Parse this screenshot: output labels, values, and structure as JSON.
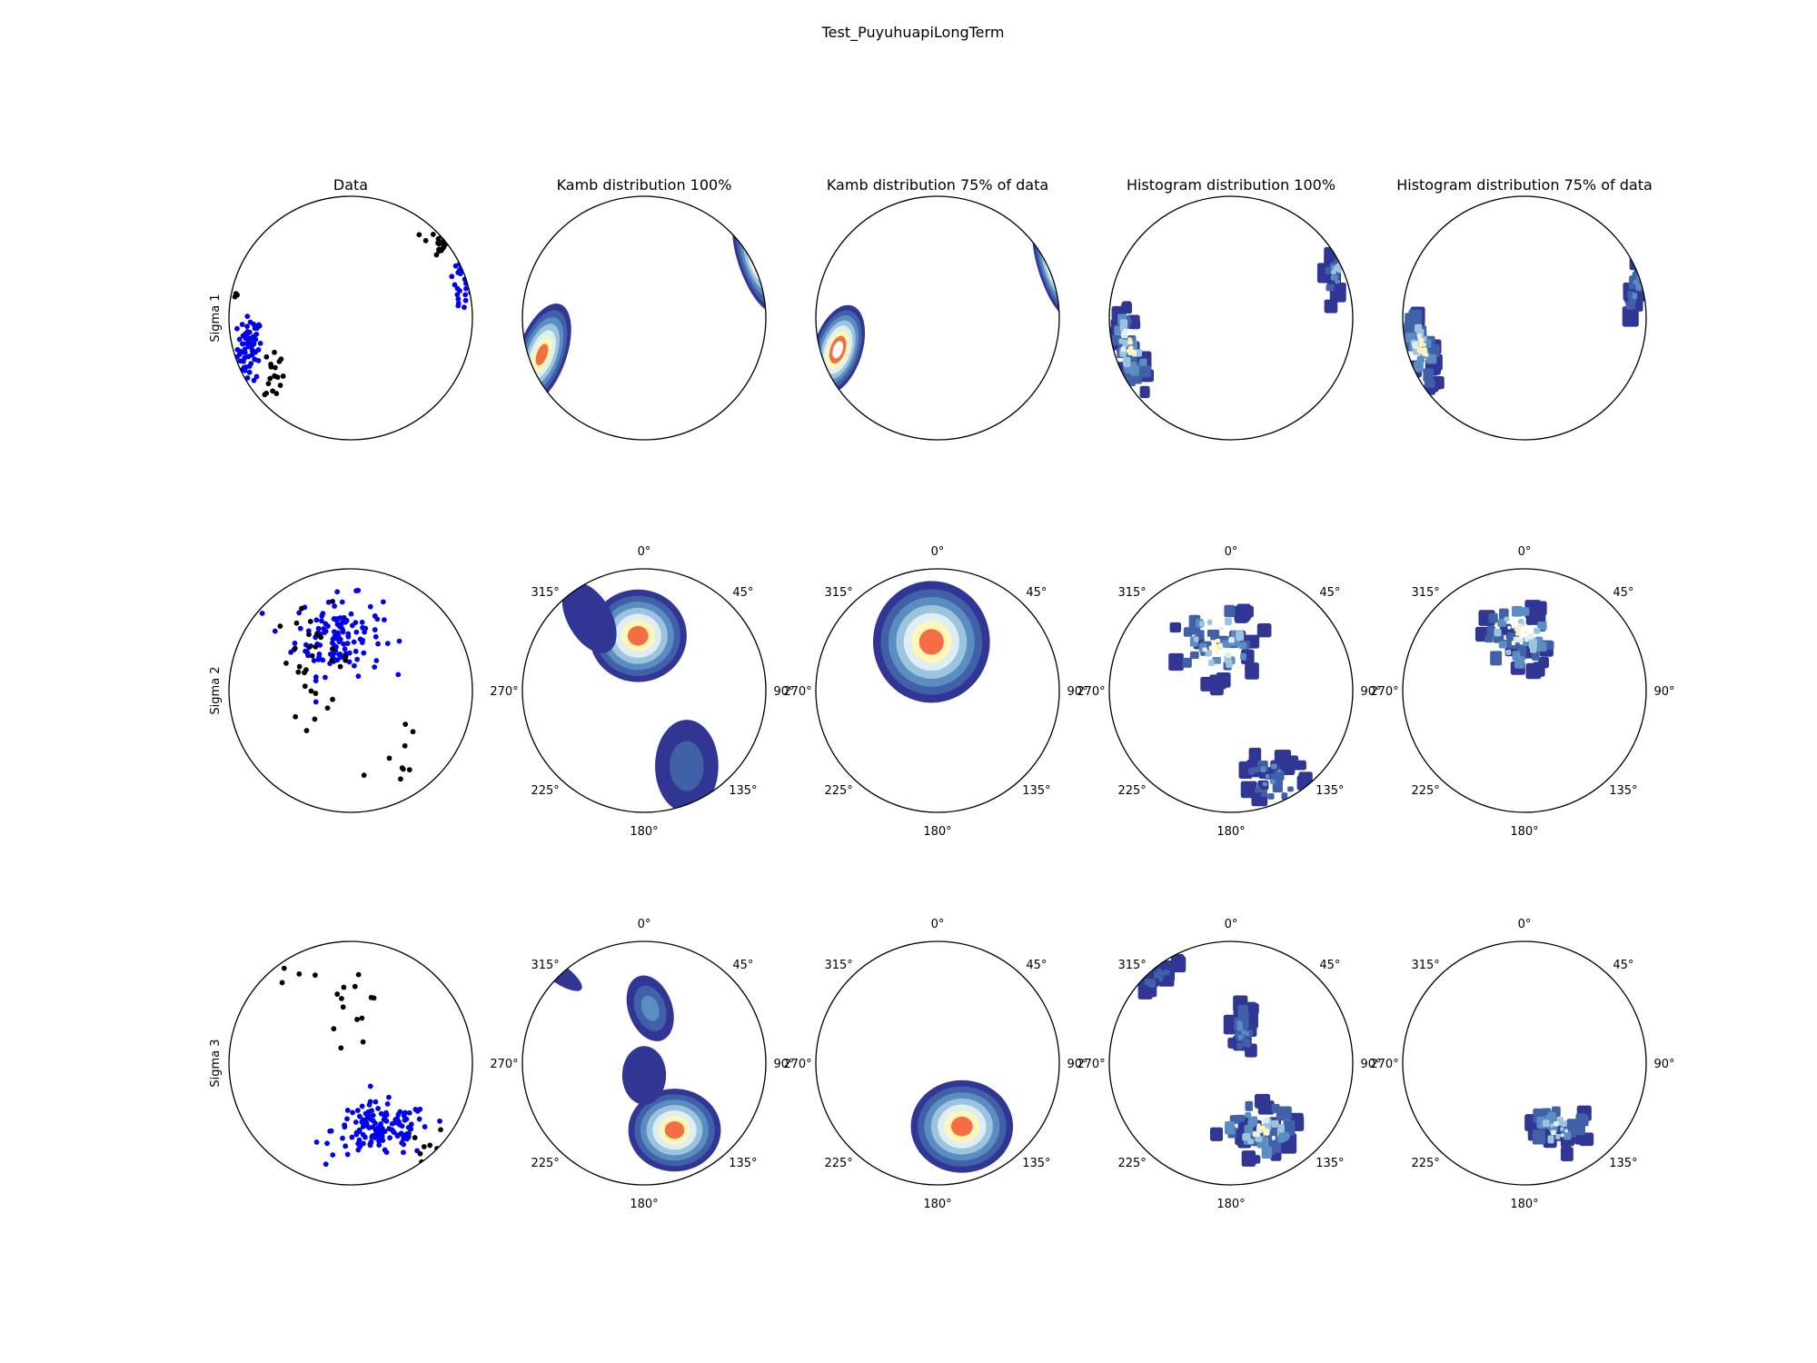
{
  "figure": {
    "title": "Test_PuyuhuapiLongTerm",
    "column_titles": [
      "Data",
      "Kamb distribution 100%",
      "Kamb distribution 75% of data",
      "Histogram distribution 100%",
      "Histogram distribution 75% of data"
    ],
    "row_labels": [
      "Sigma 1",
      "Sigma 2",
      "Sigma 3"
    ],
    "azimuth_tick_labels": [
      "0°",
      "45°",
      "90°",
      "135°",
      "180°",
      "225°",
      "270°",
      "315°"
    ]
  },
  "colors": {
    "data_points_primary": "#0000ee",
    "data_points_secondary": "#000000",
    "contour_levels": [
      "#313695",
      "#4061a8",
      "#5b8cc2",
      "#9cc4dc",
      "#dfeef2",
      "#fff6b8",
      "#f46d43",
      "#ffffff"
    ]
  },
  "chart_data": [
    {
      "type": "scatter",
      "projection": "lower-hemisphere stereonet",
      "row": "Sigma 1",
      "column": "Data",
      "note": "x/y = equal-area projection coordinates (unit circle)",
      "series": [
        {
          "color": "#0000ee",
          "clusters": [
            {
              "x": -0.83,
              "y": -0.25,
              "sx": 0.05,
              "sy": 0.13,
              "n": 70
            },
            {
              "x": 0.9,
              "y": 0.3,
              "sx": 0.04,
              "sy": 0.16,
              "n": 30
            }
          ]
        },
        {
          "color": "#000000",
          "clusters": [
            {
              "x": -0.63,
              "y": -0.45,
              "sx": 0.04,
              "sy": 0.12,
              "n": 18
            },
            {
              "x": 0.7,
              "y": 0.62,
              "sx": 0.06,
              "sy": 0.06,
              "n": 20
            },
            {
              "x": -0.94,
              "y": 0.18,
              "sx": 0.01,
              "sy": 0.02,
              "n": 3
            }
          ]
        }
      ]
    },
    {
      "type": "scatter",
      "projection": "lower-hemisphere stereonet",
      "row": "Sigma 2",
      "column": "Data",
      "series": [
        {
          "color": "#0000ee",
          "clusters": [
            {
              "x": -0.1,
              "y": 0.45,
              "sx": 0.18,
              "sy": 0.16,
              "n": 130
            }
          ]
        },
        {
          "color": "#000000",
          "clusters": [
            {
              "x": -0.3,
              "y": 0.25,
              "sx": 0.16,
              "sy": 0.22,
              "n": 30
            },
            {
              "x": 0.4,
              "y": -0.65,
              "sx": 0.18,
              "sy": 0.16,
              "n": 12
            }
          ]
        }
      ]
    },
    {
      "type": "scatter",
      "projection": "lower-hemisphere stereonet",
      "row": "Sigma 3",
      "column": "Data",
      "series": [
        {
          "color": "#0000ee",
          "clusters": [
            {
              "x": 0.25,
              "y": -0.55,
              "sx": 0.2,
              "sy": 0.11,
              "n": 140
            }
          ]
        },
        {
          "color": "#000000",
          "clusters": [
            {
              "x": 0.05,
              "y": 0.5,
              "sx": 0.12,
              "sy": 0.22,
              "n": 14
            },
            {
              "x": 0.65,
              "y": -0.7,
              "sx": 0.08,
              "sy": 0.08,
              "n": 10
            },
            {
              "x": -0.55,
              "y": 0.75,
              "sx": 0.1,
              "sy": 0.06,
              "n": 3
            }
          ]
        }
      ]
    },
    {
      "type": "heatmap",
      "method": "kamb",
      "row": "Sigma 1",
      "column": "Kamb distribution 100%",
      "blobs": [
        {
          "x": -0.84,
          "y": -0.3,
          "rx": 0.2,
          "ry": 0.44,
          "rot": -20,
          "levels": 7
        },
        {
          "x": 0.92,
          "y": 0.45,
          "rx": 0.14,
          "ry": 0.42,
          "rot": 20,
          "levels": 6
        }
      ]
    },
    {
      "type": "heatmap",
      "method": "kamb",
      "row": "Sigma 1",
      "column": "Kamb distribution 75% of data",
      "blobs": [
        {
          "x": -0.82,
          "y": -0.26,
          "rx": 0.2,
          "ry": 0.38,
          "rot": -18,
          "levels": 8
        },
        {
          "x": 0.94,
          "y": 0.4,
          "rx": 0.11,
          "ry": 0.4,
          "rot": 18,
          "levels": 6
        }
      ]
    },
    {
      "type": "heatmap",
      "method": "histogram",
      "row": "Sigma 1",
      "column": "Histogram distribution 100%",
      "blobs": [
        {
          "x": -0.83,
          "y": -0.25,
          "rx": 0.14,
          "ry": 0.4,
          "rot": -15,
          "levels": 6
        },
        {
          "x": 0.88,
          "y": 0.45,
          "rx": 0.09,
          "ry": 0.4,
          "rot": 15,
          "levels": 4
        }
      ]
    },
    {
      "type": "heatmap",
      "method": "histogram",
      "row": "Sigma 1",
      "column": "Histogram distribution 75% of data",
      "blobs": [
        {
          "x": -0.85,
          "y": -0.25,
          "rx": 0.12,
          "ry": 0.36,
          "rot": -15,
          "levels": 6
        },
        {
          "x": 0.92,
          "y": 0.28,
          "rx": 0.07,
          "ry": 0.3,
          "rot": 10,
          "levels": 3
        }
      ]
    },
    {
      "type": "heatmap",
      "method": "kamb",
      "row": "Sigma 2",
      "column": "Kamb distribution 100%",
      "blobs": [
        {
          "x": -0.05,
          "y": 0.45,
          "rx": 0.4,
          "ry": 0.38,
          "rot": 0,
          "levels": 7
        },
        {
          "x": -0.45,
          "y": 0.6,
          "rx": 0.18,
          "ry": 0.32,
          "rot": 30,
          "levels": 1
        },
        {
          "x": 0.35,
          "y": -0.62,
          "rx": 0.26,
          "ry": 0.38,
          "rot": 0,
          "levels": 2
        }
      ]
    },
    {
      "type": "heatmap",
      "method": "kamb",
      "row": "Sigma 2",
      "column": "Kamb distribution 75% of data",
      "blobs": [
        {
          "x": -0.05,
          "y": 0.4,
          "rx": 0.48,
          "ry": 0.5,
          "rot": 0,
          "levels": 7
        }
      ]
    },
    {
      "type": "heatmap",
      "method": "histogram",
      "row": "Sigma 2",
      "column": "Histogram distribution 100%",
      "blobs": [
        {
          "x": -0.1,
          "y": 0.4,
          "rx": 0.4,
          "ry": 0.36,
          "rot": 0,
          "levels": 6
        },
        {
          "x": 0.35,
          "y": -0.7,
          "rx": 0.28,
          "ry": 0.26,
          "rot": 30,
          "levels": 3
        }
      ]
    },
    {
      "type": "heatmap",
      "method": "histogram",
      "row": "Sigma 2",
      "column": "Histogram distribution 75% of data",
      "blobs": [
        {
          "x": -0.05,
          "y": 0.45,
          "rx": 0.32,
          "ry": 0.32,
          "rot": 0,
          "levels": 6
        }
      ]
    },
    {
      "type": "heatmap",
      "method": "kamb",
      "row": "Sigma 3",
      "column": "Kamb distribution 100%",
      "blobs": [
        {
          "x": 0.25,
          "y": -0.55,
          "rx": 0.38,
          "ry": 0.34,
          "rot": 0,
          "levels": 7
        },
        {
          "x": 0.05,
          "y": 0.45,
          "rx": 0.18,
          "ry": 0.28,
          "rot": 20,
          "levels": 3
        },
        {
          "x": 0.0,
          "y": -0.1,
          "rx": 0.18,
          "ry": 0.24,
          "rot": 0,
          "levels": 1
        },
        {
          "x": -0.72,
          "y": 0.75,
          "rx": 0.25,
          "ry": 0.08,
          "rot": -35,
          "levels": 1
        }
      ]
    },
    {
      "type": "heatmap",
      "method": "kamb",
      "row": "Sigma 3",
      "column": "Kamb distribution 75% of data",
      "blobs": [
        {
          "x": 0.2,
          "y": -0.52,
          "rx": 0.42,
          "ry": 0.38,
          "rot": 0,
          "levels": 7
        }
      ]
    },
    {
      "type": "heatmap",
      "method": "histogram",
      "row": "Sigma 3",
      "column": "Histogram distribution 100%",
      "blobs": [
        {
          "x": 0.25,
          "y": -0.55,
          "rx": 0.38,
          "ry": 0.26,
          "rot": 0,
          "levels": 6
        },
        {
          "x": 0.1,
          "y": 0.3,
          "rx": 0.1,
          "ry": 0.28,
          "rot": 0,
          "levels": 3
        },
        {
          "x": -0.6,
          "y": 0.72,
          "rx": 0.22,
          "ry": 0.06,
          "rot": -35,
          "levels": 2
        }
      ]
    },
    {
      "type": "heatmap",
      "method": "histogram",
      "row": "Sigma 3",
      "column": "Histogram distribution 75% of data",
      "blobs": [
        {
          "x": 0.28,
          "y": -0.55,
          "rx": 0.3,
          "ry": 0.22,
          "rot": 0,
          "levels": 5
        }
      ]
    }
  ]
}
